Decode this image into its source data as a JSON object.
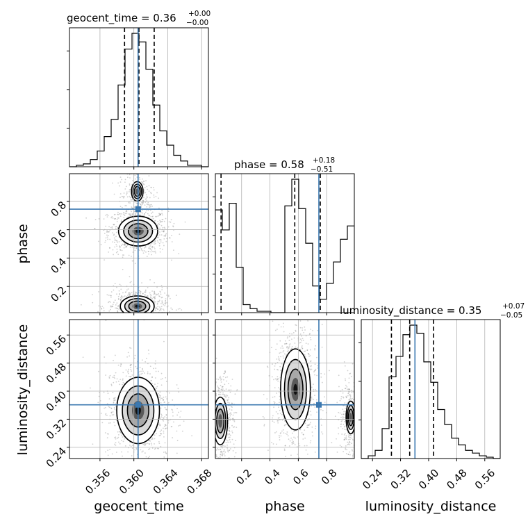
{
  "colors": {
    "truth": "#3b78b0",
    "hist": "#000000",
    "grid": "#b0b0b0",
    "quantile": "#000000"
  },
  "chart_data": {
    "type": "corner",
    "parameters": [
      "geocent_time",
      "phase",
      "luminosity_distance"
    ],
    "axis_labels": {
      "geocent_time": "geocent_time",
      "phase": "phase",
      "luminosity_distance": "luminosity_distance"
    },
    "titles": {
      "geocent_time": {
        "prefix": "geocent_time = ",
        "median": "0.36",
        "plus": "+0.00",
        "minus": "−0.00"
      },
      "phase": {
        "prefix": "phase = ",
        "median": "0.58",
        "plus": "+0.18",
        "minus": "−0.51"
      },
      "luminosity_distance": {
        "prefix": "luminosity_distance = ",
        "median": "0.35",
        "plus": "+0.07",
        "minus": "−0.05"
      }
    },
    "ranges": {
      "geocent_time": [
        0.3524,
        0.3688
      ],
      "phase": [
        0.015,
        0.995
      ],
      "luminosity_distance": [
        0.208,
        0.604
      ]
    },
    "ticks": {
      "geocent_time": [
        0.356,
        0.36,
        0.364,
        0.368
      ],
      "phase": [
        0.2,
        0.4,
        0.6,
        0.8
      ],
      "luminosity_distance": [
        0.24,
        0.32,
        0.4,
        0.48,
        0.56
      ]
    },
    "tick_labels": {
      "geocent_time": [
        "0.356",
        "0.360",
        "0.364",
        "0.368"
      ],
      "phase": [
        "0.2",
        "0.4",
        "0.6",
        "0.8"
      ],
      "luminosity_distance": [
        "0.24",
        "0.32",
        "0.40",
        "0.48",
        "0.56"
      ]
    },
    "truths": {
      "geocent_time": 0.3605,
      "phase": 0.745,
      "luminosity_distance": 0.361
    },
    "quantiles": {
      "geocent_time": [
        0.3589,
        0.3606,
        0.3624
      ],
      "phase": [
        0.055,
        0.575,
        0.755
      ],
      "luminosity_distance": [
        0.294,
        0.346,
        0.414
      ]
    },
    "histograms": {
      "geocent_time": [
        0,
        1,
        2,
        5,
        11,
        21,
        33,
        57,
        82,
        93,
        87,
        68,
        43,
        25,
        15,
        8,
        4,
        1,
        1,
        0
      ],
      "phase": [
        77,
        62,
        82,
        34,
        6,
        3,
        1,
        1,
        0,
        0,
        80,
        100,
        78,
        52,
        20,
        10,
        22,
        38,
        55,
        65
      ],
      "luminosity_distance": [
        0,
        2,
        6,
        22,
        60,
        75,
        91,
        98,
        92,
        71,
        56,
        36,
        25,
        15,
        10,
        6,
        4,
        2,
        1,
        0
      ]
    },
    "densities": {
      "geocent_time__phase": [
        {
          "x": 0.3605,
          "y": 0.59,
          "sx": 0.0011,
          "sy": 0.05,
          "w": 1.0
        },
        {
          "x": 0.3604,
          "y": 0.06,
          "sx": 0.0011,
          "sy": 0.04,
          "w": 0.75
        },
        {
          "x": 0.3604,
          "y": 0.87,
          "sx": 0.0007,
          "sy": 0.07,
          "w": 0.22
        }
      ],
      "geocent_time__luminosity_distance": [
        {
          "x": 0.3605,
          "y": 0.345,
          "sx": 0.0012,
          "sy": 0.045,
          "w": 1.0
        }
      ],
      "phase__luminosity_distance": [
        {
          "x": 0.58,
          "y": 0.405,
          "sx": 0.05,
          "sy": 0.055,
          "w": 1.0
        },
        {
          "x": 0.05,
          "y": 0.315,
          "sx": 0.03,
          "sy": 0.04,
          "w": 0.65
        },
        {
          "x": 0.97,
          "y": 0.325,
          "sx": 0.025,
          "sy": 0.035,
          "w": 0.4
        }
      ]
    },
    "grid": true
  }
}
